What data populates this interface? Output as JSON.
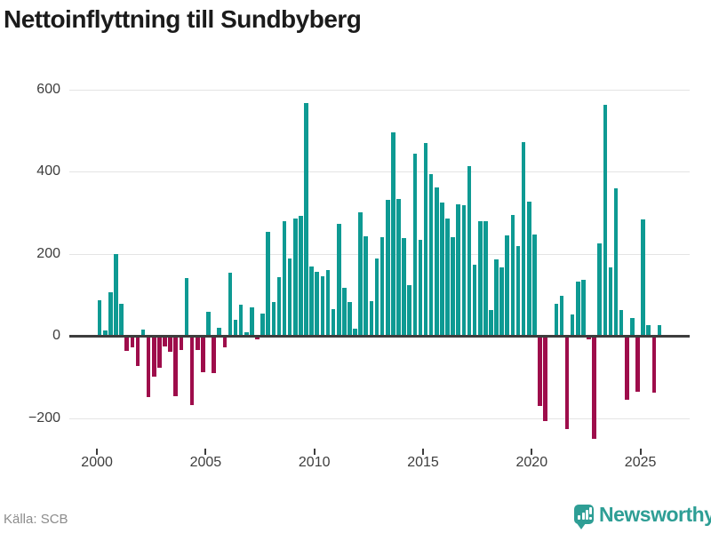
{
  "title": "Nettoinflyttning till Sundbyberg",
  "footer": {
    "source": "Källa: SCB",
    "brand": "Newsworthy",
    "brand_icon": "bar-chart-speech-bubble-icon"
  },
  "colors": {
    "positive": "#0e9a93",
    "negative": "#9e0d4b",
    "grid": "#e4e4e4",
    "zero_line": "#3d3d3d",
    "axis_text": "#3d3d3d",
    "title_text": "#1b1b1b",
    "source_text": "#8c8c8c",
    "brand": "#2e9e95"
  },
  "chart_data": {
    "type": "bar",
    "title": "Nettoinflyttning till Sundbyberg",
    "xlabel": "",
    "ylabel": "",
    "x_unit": "quarter",
    "grid": true,
    "legend": false,
    "ylim": [
      -260,
      620
    ],
    "yticks": [
      600,
      400,
      200,
      0,
      -200
    ],
    "ytick_labels": [
      "600",
      "400",
      "200",
      "0",
      "−200"
    ],
    "xticks": [
      2000,
      2005,
      2010,
      2015,
      2020,
      2025
    ],
    "xtick_labels": [
      "2000",
      "2005",
      "2010",
      "2015",
      "2020",
      "2025"
    ],
    "categories": [
      "2000Q1",
      "2000Q2",
      "2000Q3",
      "2000Q4",
      "2001Q1",
      "2001Q2",
      "2001Q3",
      "2001Q4",
      "2002Q1",
      "2002Q2",
      "2002Q3",
      "2002Q4",
      "2003Q1",
      "2003Q2",
      "2003Q3",
      "2003Q4",
      "2004Q1",
      "2004Q2",
      "2004Q3",
      "2004Q4",
      "2005Q1",
      "2005Q2",
      "2005Q3",
      "2005Q4",
      "2006Q1",
      "2006Q2",
      "2006Q3",
      "2006Q4",
      "2007Q1",
      "2007Q2",
      "2007Q3",
      "2007Q4",
      "2008Q1",
      "2008Q2",
      "2008Q3",
      "2008Q4",
      "2009Q1",
      "2009Q2",
      "2009Q3",
      "2009Q4",
      "2010Q1",
      "2010Q2",
      "2010Q3",
      "2010Q4",
      "2011Q1",
      "2011Q2",
      "2011Q3",
      "2011Q4",
      "2012Q1",
      "2012Q2",
      "2012Q3",
      "2012Q4",
      "2013Q1",
      "2013Q2",
      "2013Q3",
      "2013Q4",
      "2014Q1",
      "2014Q2",
      "2014Q3",
      "2014Q4",
      "2015Q1",
      "2015Q2",
      "2015Q3",
      "2015Q4",
      "2016Q1",
      "2016Q2",
      "2016Q3",
      "2016Q4",
      "2017Q1",
      "2017Q2",
      "2017Q3",
      "2017Q4",
      "2018Q1",
      "2018Q2",
      "2018Q3",
      "2018Q4",
      "2019Q1",
      "2019Q2",
      "2019Q3",
      "2019Q4",
      "2020Q1",
      "2020Q2",
      "2020Q3",
      "2020Q4",
      "2021Q1",
      "2021Q2",
      "2021Q3",
      "2021Q4",
      "2022Q1",
      "2022Q2",
      "2022Q3",
      "2022Q4",
      "2023Q1",
      "2023Q2",
      "2023Q3",
      "2023Q4",
      "2024Q1",
      "2024Q2",
      "2024Q3",
      "2024Q4",
      "2025Q1",
      "2025Q2",
      "2025Q3",
      "2025Q4"
    ],
    "values": [
      86,
      13,
      106,
      198,
      78,
      -36,
      -29,
      -73,
      15,
      -150,
      -100,
      -78,
      -27,
      -38,
      -146,
      -35,
      140,
      -169,
      -35,
      -89,
      59,
      -90,
      20,
      -29,
      153,
      40,
      76,
      9,
      69,
      -8,
      54,
      253,
      82,
      143,
      278,
      188,
      286,
      292,
      567,
      168,
      155,
      145,
      161,
      65,
      273,
      116,
      82,
      18,
      300,
      242,
      85,
      188,
      240,
      331,
      495,
      332,
      237,
      123,
      444,
      233,
      470,
      394,
      362,
      325,
      286,
      240,
      320,
      318,
      414,
      172,
      280,
      278,
      63,
      186,
      167,
      244,
      295,
      219,
      471,
      327,
      246,
      -170,
      -207,
      2,
      77,
      98,
      -228,
      51,
      132,
      137,
      -8,
      -250,
      224,
      562,
      166,
      360,
      62,
      -155,
      44,
      -136,
      284,
      27,
      -139,
      25
    ]
  }
}
